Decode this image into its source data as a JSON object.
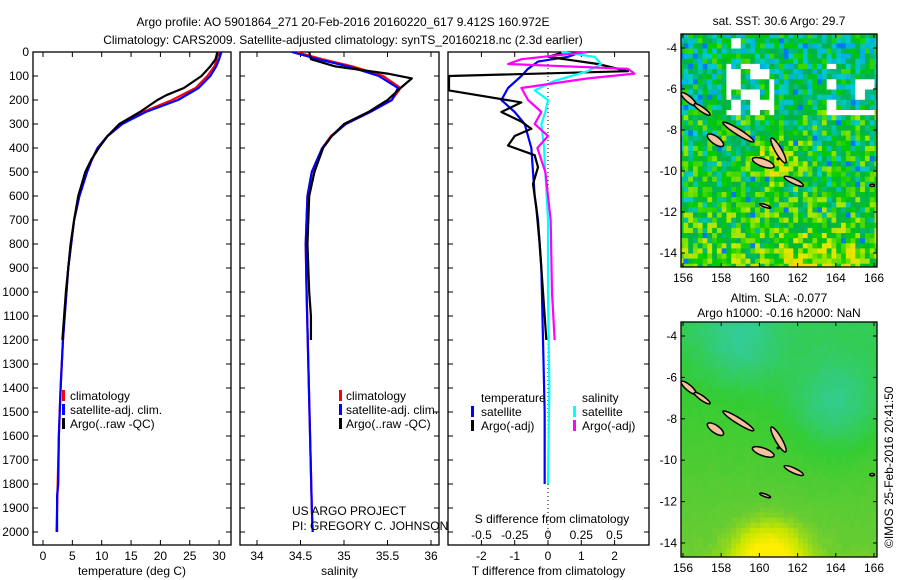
{
  "title": {
    "line1": "Argo profile: AO 5901864_271 20-Feb-2016 20160220_617 9.412S 160.972E",
    "line2": "Climatology: CARS2009. Satellite-adjusted climatology: synTS_20160218.nc (2.3d earlier)"
  },
  "credit": "©IMOS 25-Feb-2016 20:41:50",
  "project": {
    "line1": "US ARGO PROJECT",
    "line2": "PI: GREGORY C. JOHNSON"
  },
  "colors": {
    "climatology": "#ff0000",
    "satellite": "#0000ff",
    "argo": "#000000",
    "sal_satellite": "#00ffff",
    "sal_argo": "#ff00ff",
    "land": "#f5c29e"
  },
  "chart_data": [
    {
      "type": "line",
      "xlabel": "temperature (deg C)",
      "ylabel": "",
      "xlim": [
        -0.5,
        31
      ],
      "ylim": [
        2000,
        0
      ],
      "xticks": [
        "0",
        "5",
        "10",
        "15",
        "20",
        "25",
        "30"
      ],
      "yticks": [
        "0",
        "100",
        "200",
        "300",
        "400",
        "500",
        "600",
        "700",
        "800",
        "900",
        "1000",
        "1100",
        "1200",
        "1300",
        "1400",
        "1500",
        "1600",
        "1700",
        "1800",
        "1900",
        "2000"
      ],
      "legend": [
        "climatology",
        "satellite-adj. clim.",
        "Argo(..raw -QC)"
      ],
      "series": [
        {
          "name": "climatology",
          "color": "#ff0000",
          "points": [
            [
              0,
              29.8
            ],
            [
              30,
              29.6
            ],
            [
              60,
              29.2
            ],
            [
              100,
              28.0
            ],
            [
              150,
              26.0
            ],
            [
              200,
              22.0
            ],
            [
              250,
              17.0
            ],
            [
              300,
              13.5
            ],
            [
              350,
              11.0
            ],
            [
              400,
              9.3
            ],
            [
              450,
              8.3
            ],
            [
              500,
              7.5
            ],
            [
              600,
              6.2
            ],
            [
              700,
              5.3
            ],
            [
              800,
              4.8
            ],
            [
              900,
              4.3
            ],
            [
              1000,
              4.0
            ],
            [
              1200,
              3.4
            ],
            [
              1400,
              3.0
            ],
            [
              1600,
              2.7
            ],
            [
              1800,
              2.5
            ],
            [
              2000,
              2.3
            ]
          ]
        },
        {
          "name": "satellite-adj. clim.",
          "color": "#0000ff",
          "points": [
            [
              0,
              30.4
            ],
            [
              30,
              30.0
            ],
            [
              60,
              29.5
            ],
            [
              100,
              28.5
            ],
            [
              150,
              26.5
            ],
            [
              200,
              23.0
            ],
            [
              250,
              17.5
            ],
            [
              300,
              13.5
            ],
            [
              350,
              11.0
            ],
            [
              400,
              9.3
            ],
            [
              450,
              8.3
            ],
            [
              500,
              7.5
            ],
            [
              600,
              6.2
            ],
            [
              700,
              5.3
            ],
            [
              800,
              4.8
            ],
            [
              900,
              4.3
            ],
            [
              1000,
              4.0
            ],
            [
              1200,
              3.4
            ],
            [
              1400,
              3.0
            ],
            [
              1600,
              2.7
            ],
            [
              1800,
              2.6
            ],
            [
              1850,
              2.4
            ],
            [
              2000,
              2.4
            ]
          ]
        },
        {
          "name": "Argo(..raw -QC)",
          "color": "#000000",
          "points": [
            [
              0,
              29.7
            ],
            [
              30,
              29.4
            ],
            [
              60,
              28.5
            ],
            [
              100,
              27.0
            ],
            [
              150,
              24.0
            ],
            [
              180,
              21.0
            ],
            [
              200,
              19.5
            ],
            [
              250,
              16.5
            ],
            [
              300,
              13.0
            ],
            [
              350,
              11.0
            ],
            [
              400,
              9.5
            ],
            [
              450,
              8.2
            ],
            [
              500,
              7.2
            ],
            [
              600,
              6.0
            ],
            [
              700,
              5.3
            ],
            [
              800,
              4.7
            ],
            [
              900,
              4.3
            ],
            [
              1000,
              3.9
            ],
            [
              1100,
              3.6
            ],
            [
              1200,
              3.3
            ]
          ]
        }
      ]
    },
    {
      "type": "line",
      "xlabel": "salinity",
      "xlim": [
        33.7,
        36.1
      ],
      "ylim": [
        2000,
        0
      ],
      "xticks": [
        "34",
        "34.5",
        "35",
        "35.5",
        "36"
      ],
      "legend": [
        "climatology",
        "satellite-adj. clim.",
        "Argo(..raw -QC)"
      ],
      "series": [
        {
          "name": "climatology",
          "color": "#ff0000",
          "points": [
            [
              0,
              34.45
            ],
            [
              30,
              34.75
            ],
            [
              60,
              35.1
            ],
            [
              100,
              35.45
            ],
            [
              150,
              35.65
            ],
            [
              200,
              35.55
            ],
            [
              250,
              35.3
            ],
            [
              300,
              35.02
            ],
            [
              350,
              34.85
            ],
            [
              400,
              34.75
            ],
            [
              500,
              34.63
            ],
            [
              600,
              34.58
            ],
            [
              800,
              34.56
            ],
            [
              1000,
              34.57
            ],
            [
              1300,
              34.59
            ],
            [
              1600,
              34.61
            ],
            [
              1900,
              34.63
            ],
            [
              2000,
              34.64
            ]
          ]
        },
        {
          "name": "satellite-adj. clim.",
          "color": "#0000ff",
          "points": [
            [
              0,
              34.4
            ],
            [
              30,
              34.7
            ],
            [
              60,
              35.05
            ],
            [
              100,
              35.4
            ],
            [
              150,
              35.62
            ],
            [
              200,
              35.55
            ],
            [
              250,
              35.3
            ],
            [
              300,
              35.02
            ],
            [
              350,
              34.86
            ],
            [
              400,
              34.75
            ],
            [
              500,
              34.63
            ],
            [
              600,
              34.58
            ],
            [
              800,
              34.56
            ],
            [
              1000,
              34.57
            ],
            [
              1300,
              34.59
            ],
            [
              1600,
              34.61
            ],
            [
              1900,
              34.63
            ],
            [
              2000,
              34.64
            ]
          ]
        },
        {
          "name": "Argo(..raw -QC)",
          "color": "#000000",
          "points": [
            [
              0,
              34.6
            ],
            [
              30,
              34.62
            ],
            [
              60,
              34.9
            ],
            [
              90,
              35.5
            ],
            [
              110,
              35.78
            ],
            [
              150,
              35.65
            ],
            [
              200,
              35.5
            ],
            [
              250,
              35.28
            ],
            [
              300,
              35.0
            ],
            [
              350,
              34.86
            ],
            [
              400,
              34.76
            ],
            [
              500,
              34.66
            ],
            [
              600,
              34.6
            ],
            [
              800,
              34.58
            ],
            [
              1000,
              34.6
            ],
            [
              1100,
              34.62
            ],
            [
              1200,
              34.62
            ]
          ]
        }
      ]
    },
    {
      "type": "line",
      "xlabel": "T difference from climatology",
      "xlabel2": "S difference from climatology",
      "xlim": [
        -2.5,
        3.1
      ],
      "ylim": [
        2000,
        0
      ],
      "xticks": [
        "-2",
        "-1",
        "0",
        "1",
        "2"
      ],
      "xticks2": [
        "-0.5",
        "-0.25",
        "0",
        "0.25",
        "0.5"
      ],
      "legend_temperature": {
        "title": "temperature",
        "items": [
          "satellite",
          "Argo(-adj)"
        ]
      },
      "legend_salinity": {
        "title": "salinity",
        "items": [
          "satellite",
          "Argo(-adj)"
        ]
      },
      "series": [
        {
          "name": "temperature satellite",
          "axis": "T",
          "color": "#0000ff",
          "points": [
            [
              0,
              1.0
            ],
            [
              20,
              0.6
            ],
            [
              40,
              -0.3
            ],
            [
              70,
              -0.6
            ],
            [
              100,
              -0.8
            ],
            [
              150,
              -1.2
            ],
            [
              200,
              -1.4
            ],
            [
              250,
              -1.0
            ],
            [
              300,
              -0.7
            ],
            [
              350,
              -0.6
            ],
            [
              400,
              -0.5
            ],
            [
              500,
              -0.45
            ],
            [
              600,
              -0.4
            ],
            [
              700,
              -0.3
            ],
            [
              900,
              -0.2
            ],
            [
              1200,
              -0.15
            ],
            [
              1500,
              -0.1
            ],
            [
              1800,
              -0.1
            ]
          ]
        },
        {
          "name": "temperature Argo(-adj)",
          "axis": "T",
          "color": "#000000",
          "points": [
            [
              0,
              0.5
            ],
            [
              20,
              0.0
            ],
            [
              50,
              1.5
            ],
            [
              80,
              2.4
            ],
            [
              100,
              -3.0
            ],
            [
              160,
              -3.0
            ],
            [
              210,
              -0.8
            ],
            [
              250,
              -1.4
            ],
            [
              290,
              -0.8
            ],
            [
              320,
              -0.5
            ],
            [
              350,
              -1.0
            ],
            [
              390,
              -1.2
            ],
            [
              430,
              -0.4
            ],
            [
              480,
              -0.3
            ],
            [
              550,
              -0.45
            ],
            [
              650,
              -0.35
            ],
            [
              800,
              -0.25
            ],
            [
              1000,
              -0.15
            ],
            [
              1200,
              -0.05
            ]
          ]
        },
        {
          "name": "salinity satellite",
          "axis": "S",
          "color": "#00ffff",
          "points": [
            [
              0,
              0.1
            ],
            [
              20,
              0.35
            ],
            [
              50,
              0.4
            ],
            [
              80,
              0.3
            ],
            [
              120,
              0.05
            ],
            [
              160,
              -0.1
            ],
            [
              200,
              0.0
            ],
            [
              250,
              -0.02
            ],
            [
              300,
              -0.05
            ],
            [
              400,
              -0.03
            ],
            [
              500,
              -0.02
            ],
            [
              700,
              0.0
            ],
            [
              1000,
              0.0
            ],
            [
              1400,
              0.01
            ],
            [
              1800,
              0.0
            ]
          ]
        },
        {
          "name": "salinity Argo(-adj)",
          "axis": "S",
          "color": "#ff00ff",
          "points": [
            [
              0,
              0.3
            ],
            [
              30,
              -0.2
            ],
            [
              50,
              -0.3
            ],
            [
              70,
              0.6
            ],
            [
              90,
              0.65
            ],
            [
              110,
              0.3
            ],
            [
              150,
              -0.2
            ],
            [
              200,
              -0.15
            ],
            [
              250,
              -0.05
            ],
            [
              300,
              -0.1
            ],
            [
              350,
              0.0
            ],
            [
              400,
              -0.08
            ],
            [
              500,
              -0.02
            ],
            [
              700,
              0.02
            ],
            [
              1000,
              0.03
            ],
            [
              1200,
              0.05
            ]
          ]
        }
      ]
    },
    {
      "type": "heatmap",
      "title": "sat. SST: 30.6 Argo: 29.7",
      "xticks": [
        "156",
        "158",
        "160",
        "162",
        "164",
        "166"
      ],
      "yticks": [
        "-4",
        "-6",
        "-8",
        "-10",
        "-12",
        "-14"
      ],
      "colormap": [
        "#0033cc",
        "#0099ff",
        "#00cccc",
        "#00b050",
        "#00cc00",
        "#99e600",
        "#e6e600",
        "#ffcc00"
      ],
      "missing_color": "#ffffff"
    },
    {
      "type": "heatmap",
      "title": "Altim. SLA: -0.077",
      "subtitle": "Argo h1000: -0.16 h2000: NaN",
      "xticks": [
        "156",
        "158",
        "160",
        "162",
        "164",
        "166"
      ],
      "yticks": [
        "-4",
        "-6",
        "-8",
        "-10",
        "-12",
        "-14"
      ],
      "colormap": [
        "#00cccc",
        "#33cc99",
        "#33cc33",
        "#66cc33",
        "#cce600",
        "#ffee00"
      ]
    }
  ]
}
